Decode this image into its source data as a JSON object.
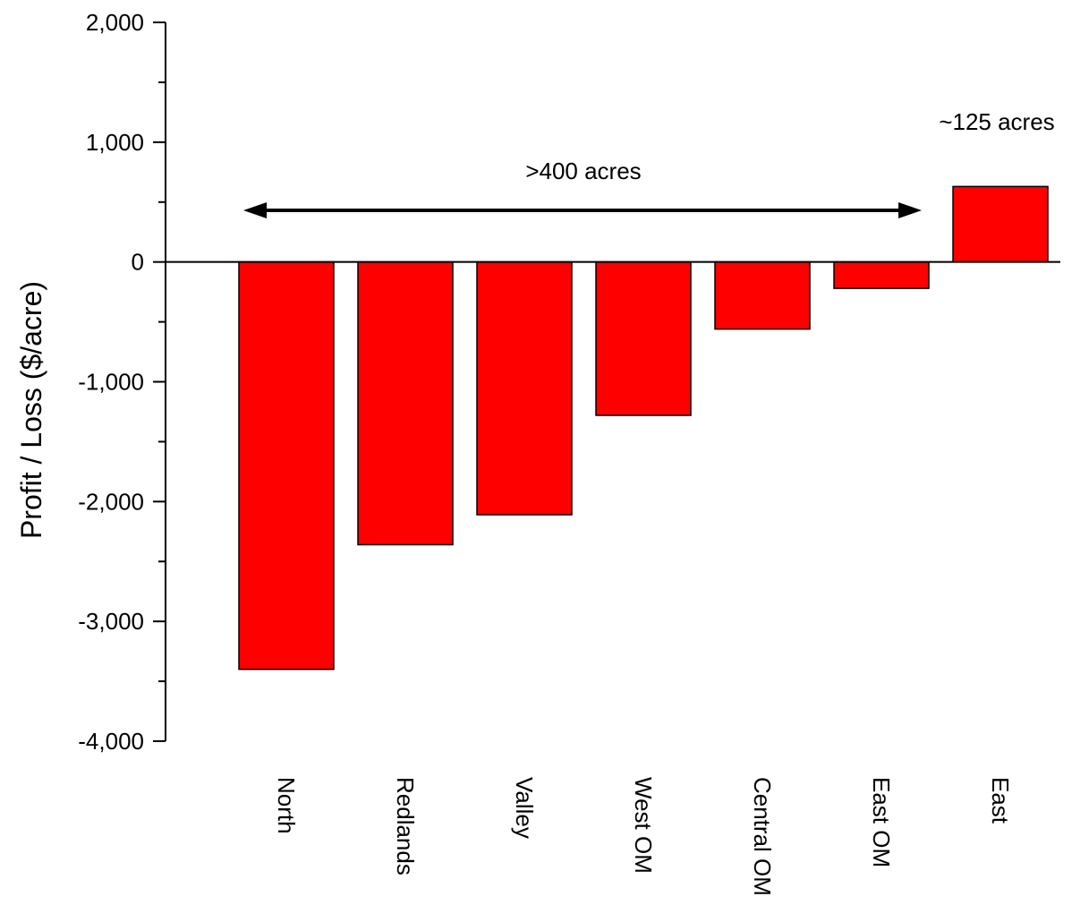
{
  "chart_data": {
    "type": "bar",
    "categories": [
      "North",
      "Redlands",
      "Valley",
      "West OM",
      "Central OM",
      "East OM",
      "East"
    ],
    "values": [
      -3400,
      -2360,
      -2110,
      -1280,
      -560,
      -220,
      630
    ],
    "colors": {
      "bar": "#ff0000",
      "bar_stroke": "#000000",
      "axis": "#000000"
    },
    "title": "",
    "xlabel": "",
    "ylabel": "Profit / Loss ($/acre)",
    "ylim": [
      -4000,
      2000
    ],
    "yticks": [
      -4000,
      -3000,
      -2000,
      -1000,
      0,
      1000,
      2000
    ],
    "ytick_labels": [
      "-4,000",
      "-3,000",
      "-2,000",
      "-1,000",
      "0",
      "1,000",
      "2,000"
    ],
    "grid": false,
    "legend": "none",
    "annotations": [
      {
        "text": ">400 acres",
        "spans": [
          "North",
          "East OM"
        ]
      },
      {
        "text": "~125 acres",
        "over": "East"
      }
    ]
  }
}
